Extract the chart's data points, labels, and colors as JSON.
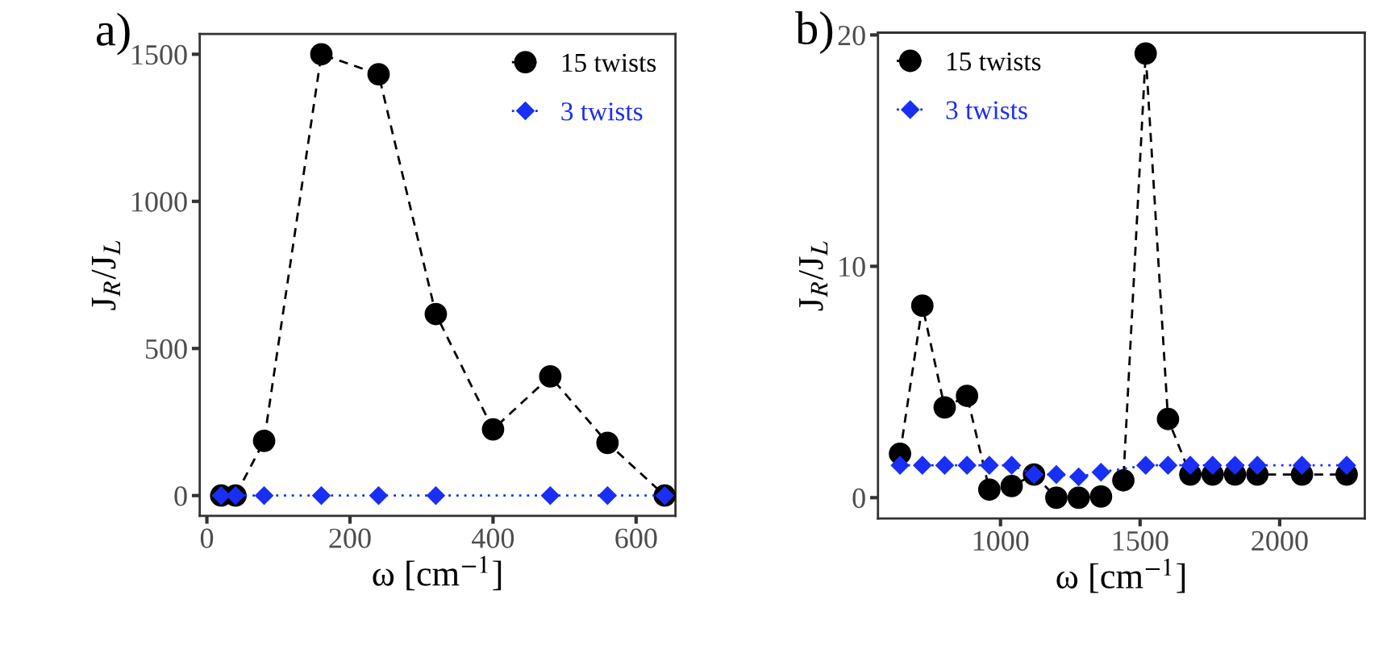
{
  "chart_data": [
    {
      "type": "line",
      "title": "a)",
      "xlabel": "ω [cm$^{−1}$]",
      "ylabel": "J$_{R}$/J$_{L}$",
      "xlim": [
        -10,
        655
      ],
      "ylim": [
        -69,
        1569
      ],
      "xticks": [
        0,
        200,
        400,
        600
      ],
      "yticks": [
        0,
        500,
        1000,
        1500
      ],
      "grid": false,
      "legend": "top right",
      "series": [
        {
          "name": "15 twists",
          "color": "#000000",
          "marker": "circle",
          "line_style": "dashed",
          "x": [
            20,
            40,
            80,
            160,
            240,
            320,
            400,
            480,
            560,
            640
          ],
          "values": [
            0,
            0,
            186,
            1500,
            1432,
            617,
            225,
            405,
            179,
            0
          ]
        },
        {
          "name": "3 twists",
          "color": "#1a2ff5",
          "marker": "diamond",
          "line_style": "dotted",
          "x": [
            20,
            40,
            80,
            160,
            240,
            320,
            480,
            560,
            640
          ],
          "values": [
            0,
            0,
            0,
            0,
            0,
            0,
            0,
            0,
            0
          ]
        }
      ]
    },
    {
      "type": "line",
      "title": "b)",
      "xlabel": "ω [cm$^{−1}$]",
      "ylabel": "J$_{R}$/J$_{L}$",
      "xlim": [
        561,
        2305
      ],
      "ylim": [
        -0.9,
        20.1
      ],
      "xticks": [
        1000,
        1500,
        2000
      ],
      "yticks": [
        0,
        10,
        20
      ],
      "grid": false,
      "legend": "top left",
      "series": [
        {
          "name": "15 twists",
          "color": "#000000",
          "marker": "circle",
          "line_style": "dashed",
          "x": [
            640,
            720,
            800,
            880,
            960,
            1040,
            1120,
            1200,
            1280,
            1360,
            1440,
            1520,
            1600,
            1680,
            1760,
            1840,
            1920,
            2080,
            2240
          ],
          "values": [
            1.9,
            8.3,
            3.9,
            4.4,
            0.35,
            0.5,
            1.0,
            0,
            0,
            0.05,
            0.75,
            19.2,
            3.4,
            1.0,
            1.0,
            1.0,
            1.0,
            1.0,
            1.0
          ]
        },
        {
          "name": "3 twists",
          "color": "#1a2ff5",
          "marker": "diamond",
          "line_style": "dotted",
          "x": [
            640,
            720,
            800,
            880,
            960,
            1040,
            1120,
            1200,
            1280,
            1360,
            1520,
            1600,
            1680,
            1760,
            1840,
            1920,
            2080,
            2240
          ],
          "values": [
            1.4,
            1.4,
            1.4,
            1.4,
            1.4,
            1.4,
            1.0,
            1.0,
            0.9,
            1.1,
            1.4,
            1.4,
            1.4,
            1.4,
            1.4,
            1.4,
            1.4,
            1.4
          ]
        }
      ]
    }
  ]
}
